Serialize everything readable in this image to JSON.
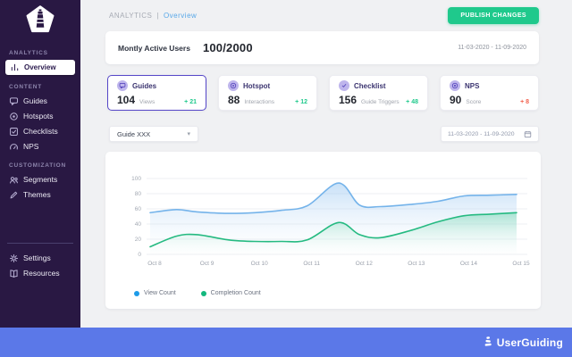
{
  "colors": {
    "sidebar_bg": "#291843",
    "accent_purple": "#5546c8",
    "accent_green": "#1fc98c",
    "accent_blue": "#58a8e8",
    "delta_red": "#f2604d",
    "footer_bar_blue": "#5b78e8",
    "main_bg": "#f0f1f3"
  },
  "sidebar": {
    "sections": [
      {
        "label": "ANALYTICS",
        "items": [
          {
            "label": "Overview",
            "icon": "bar-chart-icon",
            "active": true
          }
        ]
      },
      {
        "label": "CONTENT",
        "items": [
          {
            "label": "Guides",
            "icon": "chat-icon",
            "active": false
          },
          {
            "label": "Hotspots",
            "icon": "hotspot-icon",
            "active": false
          },
          {
            "label": "Checklists",
            "icon": "checklist-icon",
            "active": false
          },
          {
            "label": "NPS",
            "icon": "gauge-icon",
            "active": false
          }
        ]
      },
      {
        "label": "CUSTOMIZATION",
        "items": [
          {
            "label": "Segments",
            "icon": "users-icon",
            "active": false
          },
          {
            "label": "Themes",
            "icon": "pen-icon",
            "active": false
          }
        ]
      }
    ],
    "footer_items": [
      {
        "label": "Settings",
        "icon": "gear-icon",
        "active": false
      },
      {
        "label": "Resources",
        "icon": "book-icon",
        "active": false
      }
    ]
  },
  "header": {
    "breadcrumb_section": "ANALYTICS",
    "breadcrumb_separator": "|",
    "breadcrumb_page": "Overview",
    "publish_button_label": "PUBLISH CHANGES"
  },
  "mau_card": {
    "label": "Montly Active Users",
    "value": "100/2000",
    "date_range": "11-03-2020 - 11-09-2020"
  },
  "stat_cards": [
    {
      "title": "Guides",
      "value": "104",
      "unit": "Views",
      "delta": "+ 21",
      "delta_type": "up",
      "icon": "chat-icon",
      "selected": true
    },
    {
      "title": "Hotspot",
      "value": "88",
      "unit": "Interactions",
      "delta": "+ 12",
      "delta_type": "up",
      "icon": "hotspot-icon",
      "selected": false
    },
    {
      "title": "Checklist",
      "value": "156",
      "unit": "Guide Triggers",
      "delta": "+ 48",
      "delta_type": "up",
      "icon": "check-icon",
      "selected": false
    },
    {
      "title": "NPS",
      "value": "90",
      "unit": "Score",
      "delta": "+ 8",
      "delta_type": "down",
      "icon": "circle-dot-icon",
      "selected": false
    }
  ],
  "filters": {
    "guide_select_value": "Guide XXX",
    "date_range_value": "11-03-2020 - 11-09-2020"
  },
  "chart_data": {
    "type": "area",
    "title": "",
    "x_tick_labels": [
      "Oct 8",
      "Oct 9",
      "Oct 10",
      "Oct 11",
      "Oct 12",
      "Oct 13",
      "Oct 14",
      "Oct 15"
    ],
    "y_ticks": [
      0,
      20,
      40,
      60,
      80,
      100
    ],
    "ylim": [
      0,
      100
    ],
    "xlim_days": [
      0,
      7
    ],
    "grid": "horizontal",
    "legend_position": "bottom-left",
    "series": [
      {
        "name": "View Count",
        "line_color": "#74b3ea",
        "legend_color": "#1d9be8",
        "fill_from": "rgba(133,187,238,0.45)",
        "fill_to": "rgba(240,247,253,0.05)",
        "x": [
          0,
          0.5,
          0.9,
          1.5,
          2,
          2.5,
          3,
          3.6,
          4,
          4.4,
          5,
          5.5,
          6,
          6.5,
          7
        ],
        "values": [
          55,
          59,
          56,
          54,
          55,
          58,
          64,
          94,
          65,
          63,
          66,
          70,
          77,
          78,
          79
        ]
      },
      {
        "name": "Completion Count",
        "line_color": "#25ba81",
        "legend_color": "#14b87e",
        "fill_from": "rgba(94,207,163,0.45)",
        "fill_to": "rgba(240,251,246,0.05)",
        "x": [
          0,
          0.5,
          0.9,
          1.5,
          2,
          2.5,
          3,
          3.6,
          4,
          4.4,
          5,
          5.5,
          6,
          6.5,
          7
        ],
        "values": [
          10,
          24,
          26,
          19,
          17,
          17,
          19,
          42,
          26,
          22,
          32,
          43,
          51,
          53,
          55
        ]
      }
    ]
  },
  "footer": {
    "brand": "UserGuiding"
  }
}
